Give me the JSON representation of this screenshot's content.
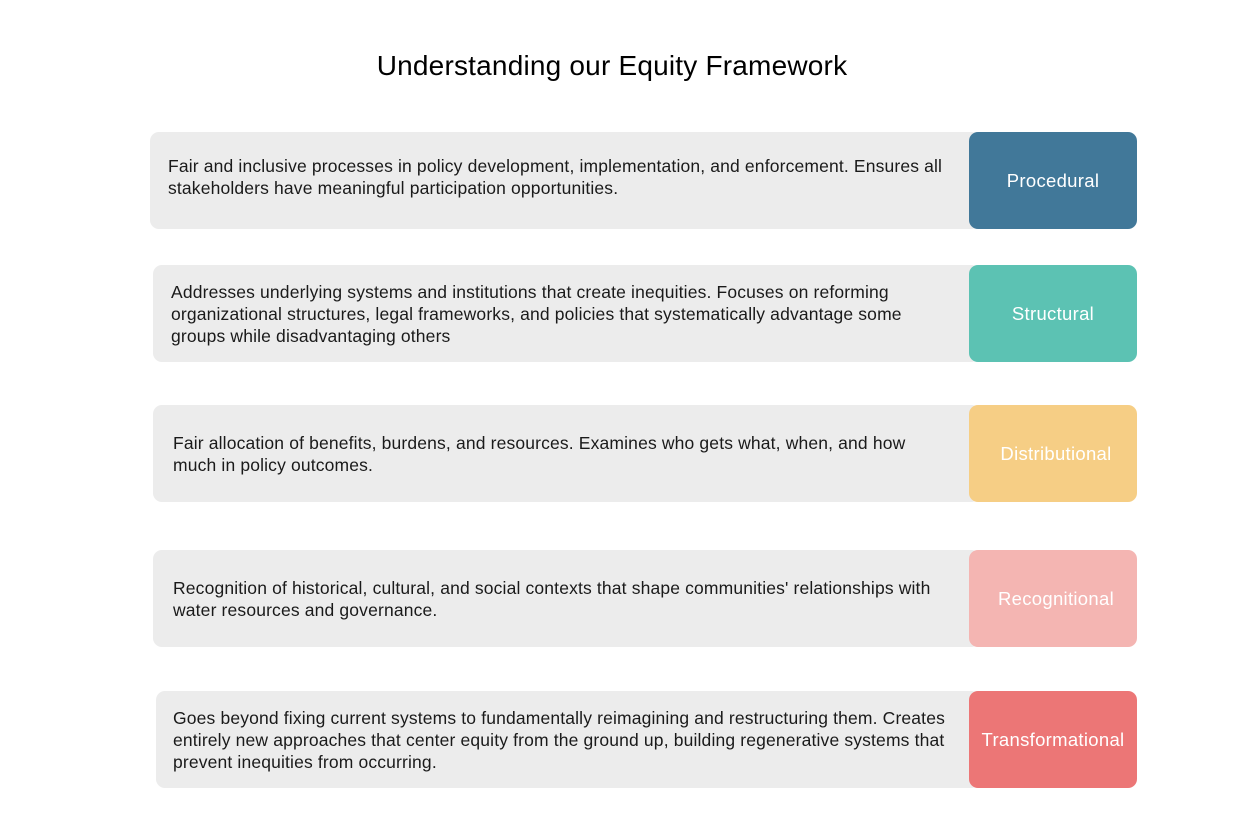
{
  "title": "Understanding our Equity Framework",
  "items": [
    {
      "label": "Procedural",
      "description": "Fair and inclusive processes in policy development, implementation, and enforcement. Ensures all stakeholders have meaningful participation opportunities.",
      "color": "#417899"
    },
    {
      "label": "Structural",
      "description": "Addresses underlying systems and institutions that create inequities. Focuses on reforming organizational structures, legal frameworks, and policies that systematically advantage some groups while disadvantaging others",
      "color": "#5cc2b3"
    },
    {
      "label": "Distributional",
      "description": "Fair allocation of benefits, burdens, and resources. Examines who gets what, when, and how much in policy outcomes.",
      "color": "#f6ce85"
    },
    {
      "label": "Recognitional",
      "description": "Recognition of historical, cultural, and social contexts that shape communities' relationships with water resources and governance.",
      "color": "#f4b5b2"
    },
    {
      "label": "Transformational",
      "description": "Goes beyond fixing current systems to fundamentally reimagining and restructuring them. Creates entirely new approaches that center equity from the ground up, building regenerative systems that prevent inequities from occurring.",
      "color": "#ec7676"
    }
  ]
}
